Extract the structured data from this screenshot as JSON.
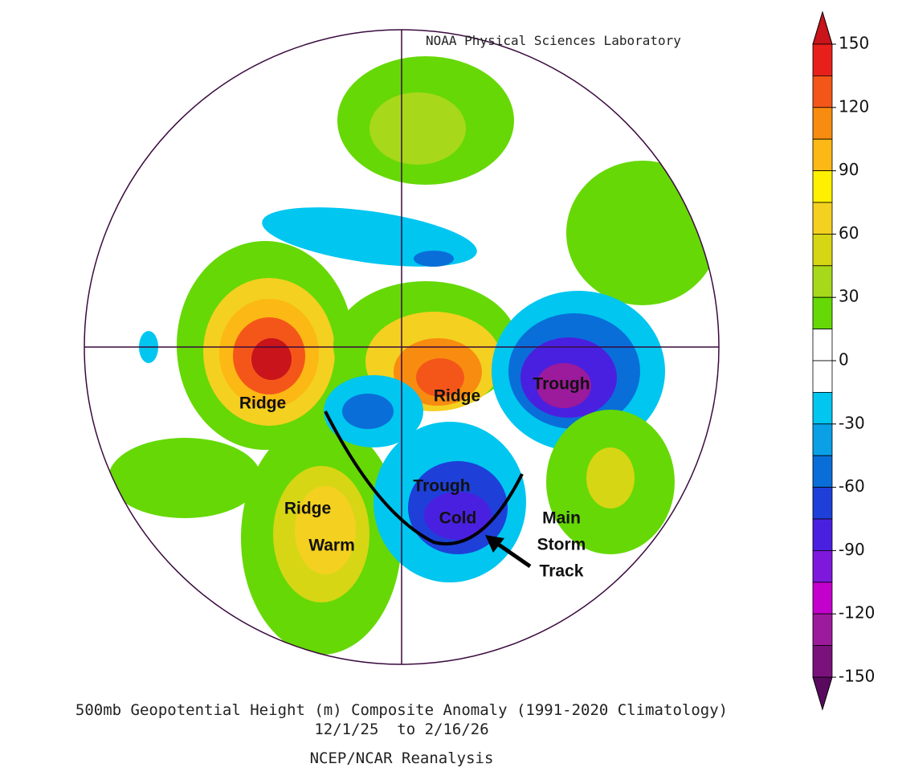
{
  "header": {
    "credit": "NOAA Physical Sciences Laboratory"
  },
  "annotations": [
    "Ridge",
    "Ridge",
    "Trough",
    "Ridge",
    "Warm",
    "Trough",
    "Cold",
    "Main",
    "Storm",
    "Track"
  ],
  "colorbar": {
    "ticks": [
      150,
      120,
      90,
      60,
      30,
      0,
      -30,
      -60,
      -90,
      -120,
      -150
    ],
    "colors": [
      "#c8141a",
      "#e8201c",
      "#f4561a",
      "#f88c10",
      "#fcb814",
      "#fff000",
      "#f4d020",
      "#d6d614",
      "#a8d81a",
      "#66d806",
      "#ffffff",
      "#ffffff",
      "#00c6f0",
      "#0aa0e6",
      "#0a6ed8",
      "#1e40d8",
      "#4a20e0",
      "#7e18dc",
      "#c400cc",
      "#9c1a9c",
      "#7a127c",
      "#5a0a5e"
    ]
  },
  "footer": {
    "title": "500mb Geopotential Height (m) Composite Anomaly (1991-2020 Climatology)",
    "period": "12/1/25  to 2/16/26",
    "source": "NCEP/NCAR Reanalysis"
  }
}
